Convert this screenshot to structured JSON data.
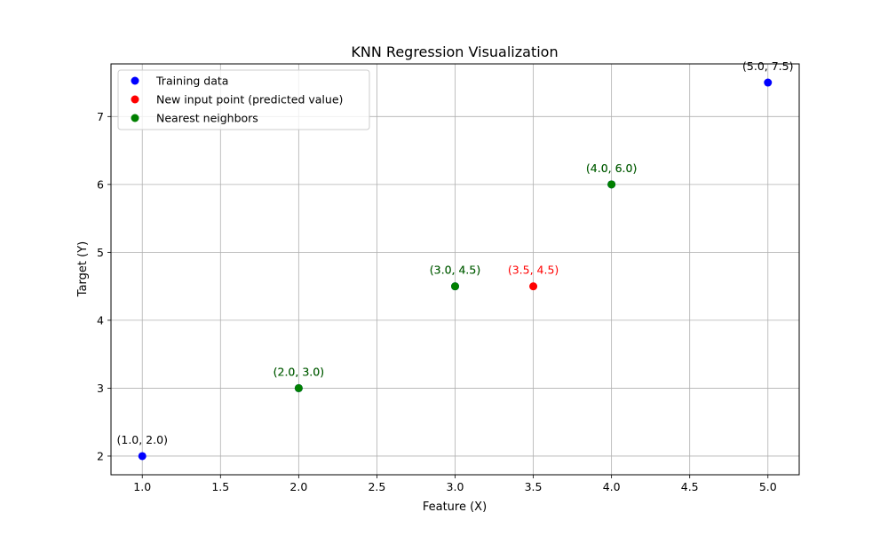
{
  "chart_data": {
    "type": "scatter",
    "title": "KNN Regression Visualization",
    "xlabel": "Feature (X)",
    "ylabel": "Target (Y)",
    "xlim": [
      0.8,
      5.2
    ],
    "ylim": [
      1.725,
      7.775
    ],
    "xticks": [
      1.0,
      1.5,
      2.0,
      2.5,
      3.0,
      3.5,
      4.0,
      4.5,
      5.0
    ],
    "xtick_labels": [
      "1.0",
      "1.5",
      "2.0",
      "2.5",
      "3.0",
      "3.5",
      "4.0",
      "4.5",
      "5.0"
    ],
    "yticks": [
      2,
      3,
      4,
      5,
      6,
      7
    ],
    "ytick_labels": [
      "2",
      "3",
      "4",
      "5",
      "6",
      "7"
    ],
    "grid": true,
    "legend_position": "upper-left",
    "series": [
      {
        "name": "Training data",
        "color": "#0000ff",
        "points": [
          {
            "x": 1.0,
            "y": 2.0,
            "label": "(1.0, 2.0)",
            "label_color": "#000000"
          },
          {
            "x": 2.0,
            "y": 3.0,
            "label": "(2.0, 3.0)",
            "label_color": "#000000"
          },
          {
            "x": 3.0,
            "y": 4.5,
            "label": "(3.0, 4.5)",
            "label_color": "#000000"
          },
          {
            "x": 4.0,
            "y": 6.0,
            "label": "(4.0, 6.0)",
            "label_color": "#000000"
          },
          {
            "x": 5.0,
            "y": 7.5,
            "label": "(5.0, 7.5)",
            "label_color": "#000000"
          }
        ]
      },
      {
        "name": "New input point (predicted value)",
        "color": "#ff0000",
        "points": [
          {
            "x": 3.5,
            "y": 4.5,
            "label": "(3.5, 4.5)",
            "label_color": "#ff0000"
          }
        ]
      },
      {
        "name": "Nearest neighbors",
        "color": "#008000",
        "points": [
          {
            "x": 2.0,
            "y": 3.0,
            "label": "(2.0, 3.0)",
            "label_color": "#006400"
          },
          {
            "x": 3.0,
            "y": 4.5,
            "label": "(3.0, 4.5)",
            "label_color": "#006400"
          },
          {
            "x": 4.0,
            "y": 6.0,
            "label": "(4.0, 6.0)",
            "label_color": "#006400"
          }
        ]
      }
    ]
  }
}
